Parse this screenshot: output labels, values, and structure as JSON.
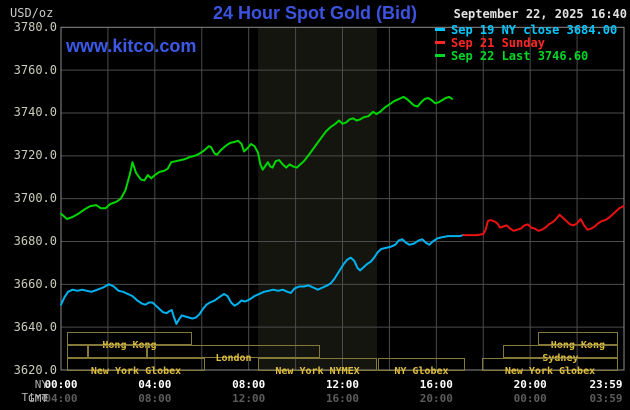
{
  "header": {
    "unit_label": "USD/oz",
    "title": "24 Hour Spot Gold (Bid)",
    "datetime": "September 22, 2025 16:40",
    "watermark": "www.kitco.com"
  },
  "legend": [
    {
      "label": "Sep 19 NY close 3684.00",
      "color": "#00c8ff"
    },
    {
      "label": "Sep 21 Sunday",
      "color": "#ff2626"
    },
    {
      "label": "Sep 22 Last 3746.60",
      "color": "#00d628"
    }
  ],
  "chart_data": {
    "type": "line",
    "title": "24 Hour Spot Gold (Bid)",
    "ylabel": "USD/oz",
    "x_range_hours": [
      0,
      24
    ],
    "ylim": [
      3620,
      3780
    ],
    "grid": true,
    "y_ticks": [
      {
        "price": 3780,
        "label": "3780.0"
      },
      {
        "price": 3760,
        "label": "3760.0"
      },
      {
        "price": 3740,
        "label": "3740.0"
      },
      {
        "price": 3720,
        "label": "3720.0"
      },
      {
        "price": 3700,
        "label": "3700.0"
      },
      {
        "price": 3680,
        "label": "3680.0"
      },
      {
        "price": 3660,
        "label": "3660.0"
      },
      {
        "price": 3640,
        "label": "3640.0"
      },
      {
        "price": 3620,
        "label": "3620.0"
      }
    ],
    "x_grid_hours": [
      0,
      2,
      4,
      6,
      8,
      10,
      12,
      14,
      16,
      18,
      20,
      22,
      24
    ],
    "ny_row_label": "NY Time",
    "gmt_row_label": "GMT",
    "ny_ticks": [
      {
        "t": 0,
        "label": "00:00"
      },
      {
        "t": 4,
        "label": "04:00"
      },
      {
        "t": 8,
        "label": "08:00"
      },
      {
        "t": 12,
        "label": "12:00"
      },
      {
        "t": 16,
        "label": "16:00"
      },
      {
        "t": 20,
        "label": "20:00"
      },
      {
        "t": 23.98,
        "label": "23:59"
      }
    ],
    "gmt_ticks": [
      {
        "t": 0,
        "label": "04:00"
      },
      {
        "t": 4,
        "label": "08:00"
      },
      {
        "t": 8,
        "label": "12:00"
      },
      {
        "t": 12,
        "label": "16:00"
      },
      {
        "t": 16,
        "label": "20:00"
      },
      {
        "t": 20,
        "label": "00:00"
      },
      {
        "t": 23.98,
        "label": "03:59"
      }
    ],
    "nymex_band": {
      "t0": 8.4,
      "t1": 13.47,
      "color": "#14150e"
    },
    "sessions": [
      {
        "row": 0,
        "t0": 0.26,
        "t1": 5.58,
        "label": "Hong Kong"
      },
      {
        "row": 0,
        "t0": 20.33,
        "t1": 23.74,
        "label": "Hong Kong"
      },
      {
        "row": 1,
        "t0": 0.26,
        "t1": 1.15,
        "label": ""
      },
      {
        "row": 1,
        "t0": 1.15,
        "t1": 3.67,
        "label": ""
      },
      {
        "row": 1,
        "t0": 3.67,
        "t1": 11.04,
        "label": "London"
      },
      {
        "row": 1,
        "t0": 18.84,
        "t1": 23.74,
        "label": "Sydney"
      },
      {
        "row": 2,
        "t0": 0.26,
        "t1": 6.14,
        "label": "New York Globex"
      },
      {
        "row": 2,
        "t0": 8.4,
        "t1": 13.47,
        "label": "New York NYMEX"
      },
      {
        "row": 2,
        "t0": 13.51,
        "t1": 17.22,
        "label": "NY Globex"
      },
      {
        "row": 2,
        "t0": 17.95,
        "t1": 23.74,
        "label": "New York Globex"
      }
    ],
    "series": [
      {
        "key": "sep19",
        "name": "Sep 19 NY close",
        "color": "#00b2f0",
        "close": 3684.0,
        "points": [
          [
            0,
            3650.5
          ],
          [
            0.15,
            3654
          ],
          [
            0.3,
            3656.5
          ],
          [
            0.5,
            3657.5
          ],
          [
            0.7,
            3657
          ],
          [
            0.9,
            3657.5
          ],
          [
            1.1,
            3657
          ],
          [
            1.3,
            3656.5
          ],
          [
            1.55,
            3657.5
          ],
          [
            1.8,
            3658.5
          ],
          [
            2.05,
            3660
          ],
          [
            2.25,
            3659
          ],
          [
            2.45,
            3657
          ],
          [
            2.65,
            3656.5
          ],
          [
            2.85,
            3655.5
          ],
          [
            3.05,
            3654.5
          ],
          [
            3.25,
            3652.5
          ],
          [
            3.45,
            3651
          ],
          [
            3.6,
            3650.5
          ],
          [
            3.75,
            3651.5
          ],
          [
            3.9,
            3651.5
          ],
          [
            4.05,
            3650
          ],
          [
            4.2,
            3648.5
          ],
          [
            4.35,
            3647
          ],
          [
            4.5,
            3646.5
          ],
          [
            4.62,
            3647.5
          ],
          [
            4.72,
            3648
          ],
          [
            4.82,
            3644.5
          ],
          [
            4.92,
            3641.5
          ],
          [
            5.02,
            3643.5
          ],
          [
            5.15,
            3645.5
          ],
          [
            5.3,
            3645
          ],
          [
            5.45,
            3644.5
          ],
          [
            5.6,
            3644
          ],
          [
            5.75,
            3644.5
          ],
          [
            5.9,
            3646
          ],
          [
            6.05,
            3648.5
          ],
          [
            6.2,
            3650.5
          ],
          [
            6.35,
            3651.5
          ],
          [
            6.55,
            3652.5
          ],
          [
            6.75,
            3654
          ],
          [
            6.95,
            3655.5
          ],
          [
            7.1,
            3654.5
          ],
          [
            7.25,
            3651.5
          ],
          [
            7.4,
            3650
          ],
          [
            7.55,
            3651
          ],
          [
            7.7,
            3652.5
          ],
          [
            7.85,
            3652
          ],
          [
            8.05,
            3653
          ],
          [
            8.25,
            3654.5
          ],
          [
            8.45,
            3655.5
          ],
          [
            8.65,
            3656.5
          ],
          [
            8.85,
            3657
          ],
          [
            9.05,
            3657.5
          ],
          [
            9.25,
            3657
          ],
          [
            9.45,
            3657.5
          ],
          [
            9.65,
            3656.5
          ],
          [
            9.8,
            3656
          ],
          [
            9.95,
            3658
          ],
          [
            10.15,
            3659
          ],
          [
            10.35,
            3659
          ],
          [
            10.55,
            3659.5
          ],
          [
            10.75,
            3658.5
          ],
          [
            10.95,
            3657.5
          ],
          [
            11.15,
            3658.5
          ],
          [
            11.35,
            3659.5
          ],
          [
            11.5,
            3660.5
          ],
          [
            11.65,
            3662.5
          ],
          [
            11.85,
            3666
          ],
          [
            12.05,
            3669.5
          ],
          [
            12.2,
            3671.5
          ],
          [
            12.35,
            3672.5
          ],
          [
            12.5,
            3671
          ],
          [
            12.65,
            3667.5
          ],
          [
            12.75,
            3666.5
          ],
          [
            12.9,
            3668
          ],
          [
            13.05,
            3669.5
          ],
          [
            13.2,
            3670.5
          ],
          [
            13.35,
            3672.5
          ],
          [
            13.5,
            3675
          ],
          [
            13.65,
            3676.5
          ],
          [
            13.85,
            3677
          ],
          [
            14.05,
            3677.5
          ],
          [
            14.25,
            3678.5
          ],
          [
            14.4,
            3680.5
          ],
          [
            14.55,
            3681
          ],
          [
            14.7,
            3679.5
          ],
          [
            14.85,
            3678.5
          ],
          [
            15.05,
            3679
          ],
          [
            15.25,
            3680.5
          ],
          [
            15.4,
            3681
          ],
          [
            15.55,
            3679.5
          ],
          [
            15.7,
            3678.5
          ],
          [
            15.85,
            3680
          ],
          [
            16.05,
            3681.5
          ],
          [
            16.25,
            3682
          ],
          [
            16.5,
            3682.5
          ],
          [
            16.75,
            3682.5
          ],
          [
            17.0,
            3682.5
          ],
          [
            17.15,
            3683
          ]
        ]
      },
      {
        "key": "sep21",
        "name": "Sep 21 Sunday",
        "color": "#e81212",
        "points": [
          [
            17.15,
            3683
          ],
          [
            17.45,
            3683
          ],
          [
            17.75,
            3683
          ],
          [
            18.0,
            3683.5
          ],
          [
            18.1,
            3685.5
          ],
          [
            18.2,
            3689.5
          ],
          [
            18.3,
            3690
          ],
          [
            18.45,
            3689.5
          ],
          [
            18.6,
            3688.5
          ],
          [
            18.72,
            3686.5
          ],
          [
            18.85,
            3687
          ],
          [
            19.0,
            3687.5
          ],
          [
            19.15,
            3686
          ],
          [
            19.3,
            3685
          ],
          [
            19.45,
            3685.5
          ],
          [
            19.6,
            3686
          ],
          [
            19.75,
            3687.5
          ],
          [
            19.9,
            3688
          ],
          [
            20.05,
            3686.5
          ],
          [
            20.2,
            3686
          ],
          [
            20.35,
            3685
          ],
          [
            20.5,
            3685.5
          ],
          [
            20.65,
            3686.5
          ],
          [
            20.8,
            3688
          ],
          [
            20.95,
            3689
          ],
          [
            21.1,
            3690.5
          ],
          [
            21.25,
            3692.5
          ],
          [
            21.4,
            3691
          ],
          [
            21.55,
            3689.5
          ],
          [
            21.7,
            3688
          ],
          [
            21.85,
            3687.5
          ],
          [
            22.0,
            3688.5
          ],
          [
            22.15,
            3690.5
          ],
          [
            22.3,
            3687.5
          ],
          [
            22.45,
            3685.5
          ],
          [
            22.6,
            3686
          ],
          [
            22.75,
            3687
          ],
          [
            22.9,
            3688.5
          ],
          [
            23.05,
            3689.5
          ],
          [
            23.2,
            3690
          ],
          [
            23.35,
            3691
          ],
          [
            23.5,
            3692.5
          ],
          [
            23.65,
            3694
          ],
          [
            23.8,
            3695.5
          ],
          [
            23.98,
            3696.5
          ]
        ]
      },
      {
        "key": "sep22",
        "name": "Sep 22",
        "color": "#00d600",
        "last": 3746.6,
        "points": [
          [
            0,
            3693
          ],
          [
            0.25,
            3690.5
          ],
          [
            0.5,
            3691.5
          ],
          [
            0.75,
            3693
          ],
          [
            1.0,
            3695
          ],
          [
            1.25,
            3696.5
          ],
          [
            1.5,
            3697
          ],
          [
            1.7,
            3695.5
          ],
          [
            1.9,
            3695.5
          ],
          [
            2.1,
            3697.5
          ],
          [
            2.35,
            3698.5
          ],
          [
            2.55,
            3700
          ],
          [
            2.75,
            3704
          ],
          [
            2.95,
            3712
          ],
          [
            3.05,
            3717
          ],
          [
            3.2,
            3712
          ],
          [
            3.4,
            3709
          ],
          [
            3.55,
            3708.5
          ],
          [
            3.7,
            3711
          ],
          [
            3.85,
            3709.5
          ],
          [
            4.0,
            3711
          ],
          [
            4.2,
            3712.5
          ],
          [
            4.4,
            3713
          ],
          [
            4.55,
            3714
          ],
          [
            4.7,
            3717
          ],
          [
            4.9,
            3717.5
          ],
          [
            5.1,
            3718
          ],
          [
            5.3,
            3718.5
          ],
          [
            5.5,
            3719.5
          ],
          [
            5.7,
            3720
          ],
          [
            5.9,
            3721
          ],
          [
            6.1,
            3722.5
          ],
          [
            6.3,
            3724.5
          ],
          [
            6.4,
            3724
          ],
          [
            6.55,
            3721
          ],
          [
            6.65,
            3720.5
          ],
          [
            6.8,
            3722.5
          ],
          [
            7.0,
            3724.5
          ],
          [
            7.2,
            3726
          ],
          [
            7.4,
            3726.5
          ],
          [
            7.55,
            3727
          ],
          [
            7.7,
            3725.5
          ],
          [
            7.8,
            3722
          ],
          [
            7.95,
            3723.5
          ],
          [
            8.1,
            3725.5
          ],
          [
            8.25,
            3724.5
          ],
          [
            8.4,
            3721.5
          ],
          [
            8.5,
            3716
          ],
          [
            8.6,
            3713.5
          ],
          [
            8.72,
            3715.5
          ],
          [
            8.82,
            3717
          ],
          [
            8.92,
            3715
          ],
          [
            9.02,
            3714.5
          ],
          [
            9.15,
            3717.5
          ],
          [
            9.3,
            3718
          ],
          [
            9.45,
            3716
          ],
          [
            9.6,
            3714.5
          ],
          [
            9.75,
            3716
          ],
          [
            9.9,
            3715
          ],
          [
            10.05,
            3714.5
          ],
          [
            10.2,
            3716
          ],
          [
            10.35,
            3717.5
          ],
          [
            10.5,
            3719.5
          ],
          [
            10.7,
            3722.5
          ],
          [
            10.9,
            3725.5
          ],
          [
            11.1,
            3728.5
          ],
          [
            11.3,
            3731.5
          ],
          [
            11.5,
            3733.5
          ],
          [
            11.7,
            3735
          ],
          [
            11.85,
            3736.5
          ],
          [
            12.0,
            3735
          ],
          [
            12.15,
            3735.5
          ],
          [
            12.3,
            3737
          ],
          [
            12.45,
            3737.5
          ],
          [
            12.6,
            3736.5
          ],
          [
            12.75,
            3737
          ],
          [
            12.9,
            3738
          ],
          [
            13.1,
            3738.5
          ],
          [
            13.3,
            3740.5
          ],
          [
            13.45,
            3739.5
          ],
          [
            13.6,
            3740.5
          ],
          [
            13.8,
            3742.5
          ],
          [
            14.0,
            3744
          ],
          [
            14.2,
            3745.5
          ],
          [
            14.4,
            3746.5
          ],
          [
            14.6,
            3747.5
          ],
          [
            14.75,
            3746.5
          ],
          [
            14.9,
            3745
          ],
          [
            15.05,
            3743.5
          ],
          [
            15.2,
            3743
          ],
          [
            15.35,
            3745
          ],
          [
            15.5,
            3746.5
          ],
          [
            15.65,
            3747
          ],
          [
            15.8,
            3746
          ],
          [
            15.95,
            3744.5
          ],
          [
            16.1,
            3745
          ],
          [
            16.25,
            3746
          ],
          [
            16.4,
            3747
          ],
          [
            16.55,
            3747.5
          ],
          [
            16.67,
            3746.6
          ]
        ]
      }
    ]
  }
}
